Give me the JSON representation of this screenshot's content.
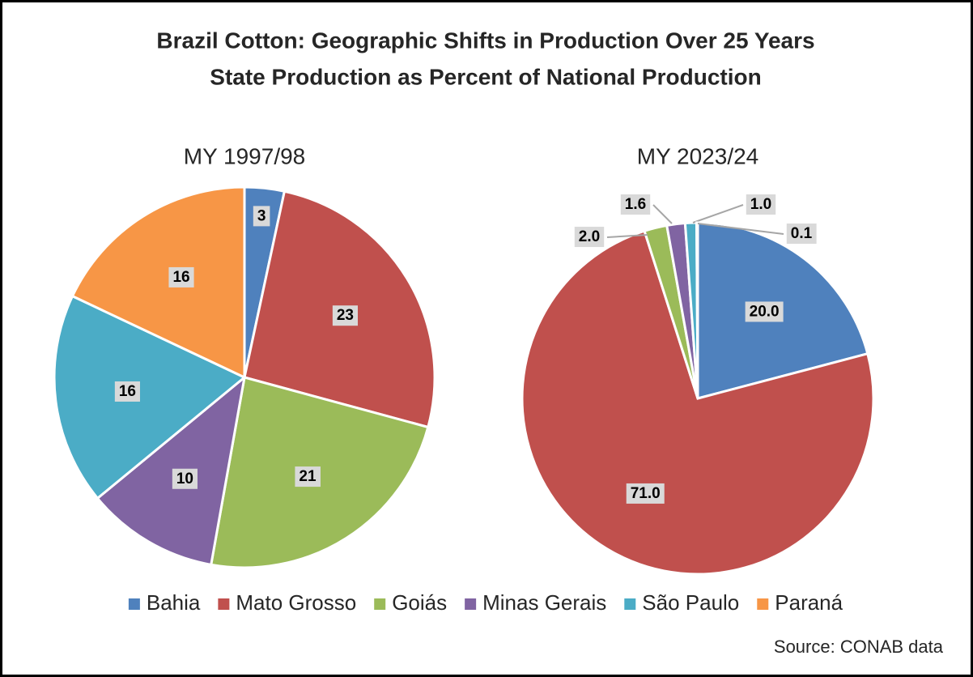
{
  "title": [
    "Brazil Cotton: Geographic Shifts in Production Over 25 Years",
    "State Production as Percent of National Production"
  ],
  "source": "Source: CONAB data",
  "chart_data": [
    {
      "type": "pie",
      "title": "MY 1997/98",
      "categories": [
        "Bahia",
        "Mato Grosso",
        "Goiás",
        "Minas Gerais",
        "São Paulo",
        "Paraná"
      ],
      "colors": [
        "#4f81bd",
        "#c0504d",
        "#9bbb59",
        "#8064a2",
        "#4bacc6",
        "#f79646"
      ],
      "values": [
        3,
        23,
        21,
        10,
        16,
        16
      ]
    },
    {
      "type": "pie",
      "title": "MY 2023/24",
      "categories": [
        "Bahia",
        "Mato Grosso",
        "Goiás",
        "Minas Gerais",
        "São Paulo",
        "Paraná"
      ],
      "colors": [
        "#4f81bd",
        "#c0504d",
        "#9bbb59",
        "#8064a2",
        "#4bacc6",
        "#f79646"
      ],
      "values": [
        20,
        71,
        2,
        1.6,
        1,
        0.1
      ],
      "value_labels": [
        "20.0",
        "71.0",
        "2.0",
        "1.6",
        "1.0",
        "0.1"
      ]
    }
  ]
}
